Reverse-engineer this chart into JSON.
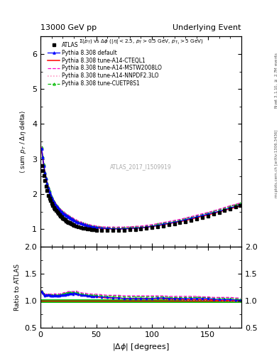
{
  "title_left": "13000 GeV pp",
  "title_right": "Underlying Event",
  "subtitle": "$\\Sigma(p_T)$ vs $\\Delta\\phi$ ($|\\eta| < 2.5$, $p_T > 0.5$ GeV, $p_{T_1} > 5$ GeV)",
  "ylabel_main": "$\\langle$ sum $p_T$ / $\\Delta\\eta$ delta$\\rangle$",
  "ylabel_ratio": "Ratio to ATLAS",
  "xlabel": "$|\\Delta\\phi|$ [degrees]",
  "right_label_top": "Rivet 3.1.10, $\\geq$ 2.7M events",
  "right_label_bottom": "mcplots.cern.ch [arXiv:1306.3436]",
  "watermark": "ATLAS_2017_I1509919",
  "dphi": [
    1,
    2,
    3,
    4,
    5,
    6,
    7,
    8,
    9,
    10,
    11,
    12,
    13,
    14,
    15,
    16,
    17,
    18,
    19,
    20,
    21,
    22,
    23,
    24,
    25,
    26,
    27,
    28,
    29,
    30,
    32,
    34,
    36,
    38,
    40,
    42,
    44,
    46,
    48,
    50,
    55,
    60,
    65,
    70,
    75,
    80,
    85,
    90,
    95,
    100,
    105,
    110,
    115,
    120,
    125,
    130,
    135,
    140,
    145,
    150,
    155,
    160,
    165,
    170,
    175,
    179
  ],
  "data_atlas": [
    2.82,
    2.68,
    2.52,
    2.38,
    2.22,
    2.1,
    1.97,
    1.88,
    1.82,
    1.74,
    1.68,
    1.62,
    1.57,
    1.53,
    1.49,
    1.45,
    1.42,
    1.38,
    1.35,
    1.32,
    1.3,
    1.27,
    1.24,
    1.22,
    1.2,
    1.18,
    1.16,
    1.14,
    1.13,
    1.11,
    1.08,
    1.06,
    1.05,
    1.03,
    1.02,
    1.01,
    1.0,
    0.99,
    0.98,
    0.97,
    0.96,
    0.96,
    0.96,
    0.96,
    0.97,
    0.98,
    0.99,
    1.0,
    1.02,
    1.04,
    1.06,
    1.09,
    1.12,
    1.15,
    1.18,
    1.22,
    1.26,
    1.3,
    1.34,
    1.38,
    1.43,
    1.48,
    1.53,
    1.58,
    1.63,
    1.67
  ],
  "data_default": [
    3.3,
    3.05,
    2.82,
    2.6,
    2.44,
    2.3,
    2.18,
    2.07,
    1.98,
    1.9,
    1.83,
    1.77,
    1.72,
    1.67,
    1.63,
    1.59,
    1.55,
    1.52,
    1.49,
    1.46,
    1.44,
    1.41,
    1.39,
    1.37,
    1.35,
    1.33,
    1.31,
    1.29,
    1.27,
    1.26,
    1.22,
    1.19,
    1.17,
    1.14,
    1.12,
    1.1,
    1.09,
    1.07,
    1.06,
    1.05,
    1.03,
    1.02,
    1.01,
    1.01,
    1.01,
    1.02,
    1.03,
    1.04,
    1.06,
    1.08,
    1.11,
    1.14,
    1.17,
    1.2,
    1.23,
    1.27,
    1.31,
    1.35,
    1.39,
    1.43,
    1.47,
    1.51,
    1.56,
    1.61,
    1.65,
    1.69
  ],
  "data_cteql1": [
    3.28,
    3.03,
    2.8,
    2.59,
    2.43,
    2.29,
    2.17,
    2.06,
    1.97,
    1.89,
    1.82,
    1.76,
    1.71,
    1.66,
    1.62,
    1.58,
    1.54,
    1.51,
    1.48,
    1.45,
    1.43,
    1.4,
    1.38,
    1.36,
    1.34,
    1.32,
    1.3,
    1.28,
    1.27,
    1.25,
    1.22,
    1.18,
    1.16,
    1.13,
    1.11,
    1.09,
    1.08,
    1.06,
    1.05,
    1.04,
    1.02,
    1.01,
    1.01,
    1.01,
    1.01,
    1.02,
    1.03,
    1.04,
    1.06,
    1.08,
    1.1,
    1.13,
    1.16,
    1.19,
    1.22,
    1.25,
    1.29,
    1.33,
    1.37,
    1.41,
    1.45,
    1.5,
    1.54,
    1.59,
    1.63,
    1.67
  ],
  "data_mstw": [
    3.35,
    3.1,
    2.87,
    2.66,
    2.49,
    2.35,
    2.23,
    2.12,
    2.03,
    1.95,
    1.88,
    1.82,
    1.77,
    1.72,
    1.68,
    1.64,
    1.6,
    1.57,
    1.54,
    1.51,
    1.49,
    1.46,
    1.44,
    1.42,
    1.4,
    1.38,
    1.36,
    1.34,
    1.32,
    1.3,
    1.27,
    1.23,
    1.21,
    1.18,
    1.16,
    1.14,
    1.13,
    1.11,
    1.1,
    1.09,
    1.07,
    1.06,
    1.06,
    1.06,
    1.06,
    1.07,
    1.08,
    1.09,
    1.11,
    1.13,
    1.16,
    1.19,
    1.22,
    1.25,
    1.28,
    1.32,
    1.36,
    1.4,
    1.44,
    1.48,
    1.52,
    1.57,
    1.62,
    1.67,
    1.71,
    1.75
  ],
  "data_nnpdf": [
    3.27,
    3.02,
    2.79,
    2.58,
    2.42,
    2.28,
    2.16,
    2.05,
    1.96,
    1.88,
    1.81,
    1.75,
    1.7,
    1.65,
    1.61,
    1.57,
    1.53,
    1.5,
    1.47,
    1.44,
    1.42,
    1.39,
    1.37,
    1.35,
    1.33,
    1.31,
    1.29,
    1.27,
    1.26,
    1.24,
    1.21,
    1.17,
    1.15,
    1.12,
    1.1,
    1.08,
    1.07,
    1.05,
    1.04,
    1.03,
    1.01,
    1.0,
    1.0,
    1.0,
    1.0,
    1.01,
    1.02,
    1.03,
    1.05,
    1.07,
    1.09,
    1.12,
    1.15,
    1.18,
    1.21,
    1.24,
    1.28,
    1.32,
    1.36,
    1.4,
    1.44,
    1.49,
    1.53,
    1.58,
    1.62,
    1.66
  ],
  "data_cuetp8s1": [
    3.33,
    3.08,
    2.85,
    2.64,
    2.47,
    2.33,
    2.21,
    2.1,
    2.01,
    1.93,
    1.86,
    1.8,
    1.75,
    1.7,
    1.66,
    1.62,
    1.58,
    1.55,
    1.52,
    1.49,
    1.47,
    1.44,
    1.42,
    1.4,
    1.38,
    1.36,
    1.34,
    1.32,
    1.3,
    1.28,
    1.25,
    1.21,
    1.19,
    1.16,
    1.14,
    1.12,
    1.11,
    1.09,
    1.08,
    1.07,
    1.05,
    1.04,
    1.04,
    1.04,
    1.04,
    1.05,
    1.06,
    1.07,
    1.09,
    1.11,
    1.14,
    1.17,
    1.2,
    1.23,
    1.26,
    1.3,
    1.34,
    1.38,
    1.42,
    1.46,
    1.51,
    1.55,
    1.6,
    1.65,
    1.69,
    1.73
  ],
  "ratio_default": [
    1.17,
    1.14,
    1.12,
    1.09,
    1.1,
    1.1,
    1.11,
    1.1,
    1.09,
    1.09,
    1.09,
    1.09,
    1.1,
    1.09,
    1.09,
    1.09,
    1.09,
    1.1,
    1.1,
    1.11,
    1.11,
    1.11,
    1.12,
    1.12,
    1.12,
    1.13,
    1.13,
    1.13,
    1.12,
    1.14,
    1.13,
    1.12,
    1.11,
    1.1,
    1.1,
    1.09,
    1.09,
    1.08,
    1.08,
    1.08,
    1.07,
    1.06,
    1.05,
    1.05,
    1.04,
    1.04,
    1.04,
    1.04,
    1.04,
    1.04,
    1.05,
    1.05,
    1.04,
    1.04,
    1.04,
    1.04,
    1.04,
    1.04,
    1.04,
    1.04,
    1.03,
    1.02,
    1.02,
    1.02,
    1.01,
    1.01
  ],
  "ratio_cteql1": [
    1.16,
    1.13,
    1.11,
    1.09,
    1.09,
    1.09,
    1.1,
    1.09,
    1.08,
    1.08,
    1.08,
    1.08,
    1.09,
    1.08,
    1.08,
    1.09,
    1.08,
    1.09,
    1.09,
    1.1,
    1.1,
    1.1,
    1.11,
    1.11,
    1.11,
    1.12,
    1.12,
    1.12,
    1.12,
    1.12,
    1.12,
    1.11,
    1.1,
    1.09,
    1.09,
    1.08,
    1.08,
    1.07,
    1.07,
    1.07,
    1.06,
    1.05,
    1.05,
    1.05,
    1.04,
    1.04,
    1.04,
    1.04,
    1.04,
    1.04,
    1.04,
    1.04,
    1.03,
    1.03,
    1.03,
    1.02,
    1.02,
    1.02,
    1.02,
    1.02,
    1.01,
    1.01,
    1.01,
    1.01,
    1.0,
    1.0
  ],
  "ratio_mstw": [
    1.19,
    1.16,
    1.14,
    1.12,
    1.12,
    1.12,
    1.13,
    1.12,
    1.12,
    1.12,
    1.12,
    1.12,
    1.13,
    1.12,
    1.12,
    1.13,
    1.12,
    1.13,
    1.14,
    1.14,
    1.15,
    1.15,
    1.16,
    1.16,
    1.17,
    1.17,
    1.17,
    1.17,
    1.17,
    1.17,
    1.18,
    1.16,
    1.15,
    1.14,
    1.14,
    1.13,
    1.13,
    1.12,
    1.12,
    1.12,
    1.11,
    1.1,
    1.1,
    1.1,
    1.09,
    1.09,
    1.09,
    1.09,
    1.09,
    1.09,
    1.09,
    1.09,
    1.08,
    1.08,
    1.08,
    1.08,
    1.08,
    1.08,
    1.07,
    1.07,
    1.06,
    1.06,
    1.06,
    1.06,
    1.05,
    1.05
  ],
  "ratio_nnpdf": [
    1.16,
    1.13,
    1.11,
    1.08,
    1.09,
    1.09,
    1.09,
    1.09,
    1.08,
    1.08,
    1.08,
    1.08,
    1.08,
    1.08,
    1.08,
    1.08,
    1.08,
    1.09,
    1.09,
    1.09,
    1.09,
    1.09,
    1.1,
    1.1,
    1.11,
    1.11,
    1.11,
    1.11,
    1.11,
    1.12,
    1.11,
    1.1,
    1.09,
    1.08,
    1.08,
    1.07,
    1.07,
    1.06,
    1.06,
    1.06,
    1.05,
    1.04,
    1.04,
    1.04,
    1.03,
    1.03,
    1.03,
    1.03,
    1.03,
    1.03,
    1.03,
    1.03,
    1.02,
    1.02,
    1.02,
    1.01,
    1.01,
    1.01,
    1.01,
    1.01,
    1.01,
    1.0,
    1.0,
    1.0,
    0.99,
    0.99
  ],
  "ratio_cuetp8s1": [
    1.18,
    1.15,
    1.13,
    1.11,
    1.11,
    1.11,
    1.12,
    1.12,
    1.11,
    1.11,
    1.11,
    1.11,
    1.11,
    1.11,
    1.11,
    1.12,
    1.11,
    1.12,
    1.12,
    1.13,
    1.13,
    1.13,
    1.14,
    1.15,
    1.15,
    1.15,
    1.15,
    1.16,
    1.15,
    1.15,
    1.16,
    1.14,
    1.13,
    1.12,
    1.12,
    1.11,
    1.11,
    1.1,
    1.1,
    1.1,
    1.09,
    1.08,
    1.08,
    1.08,
    1.07,
    1.07,
    1.07,
    1.07,
    1.07,
    1.07,
    1.07,
    1.07,
    1.06,
    1.06,
    1.06,
    1.06,
    1.06,
    1.06,
    1.06,
    1.06,
    1.05,
    1.05,
    1.04,
    1.04,
    1.04,
    1.03
  ],
  "ylim_main": [
    0.5,
    6.5
  ],
  "ylim_ratio": [
    0.5,
    2.0
  ],
  "yticks_main": [
    1,
    2,
    3,
    4,
    5,
    6
  ],
  "yticks_ratio": [
    0.5,
    1.0,
    1.5,
    2.0
  ],
  "xlim": [
    0,
    180
  ],
  "xticks": [
    0,
    50,
    100,
    150
  ],
  "color_atlas_marker": "#000000",
  "color_default": "#0000FF",
  "color_cteql1": "#FF0000",
  "color_mstw": "#FF00CC",
  "color_nnpdf": "#FF88BB",
  "color_cuetp8s1": "#00BB00",
  "bg_color": "#ffffff"
}
